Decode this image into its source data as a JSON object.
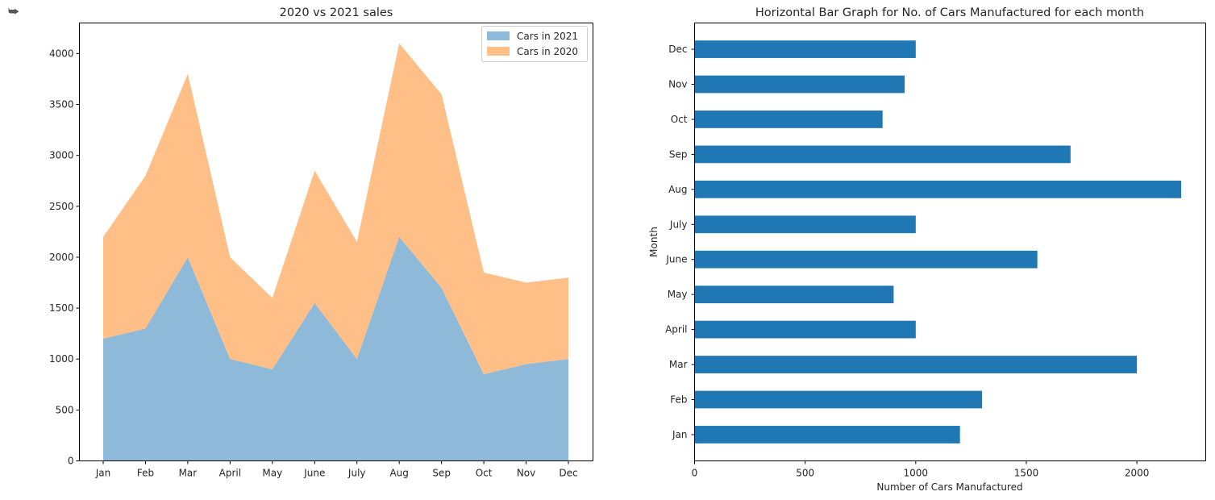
{
  "output_icon": "output-arrow-icon",
  "chart_data": [
    {
      "type": "area",
      "stacked": true,
      "title": "2020 vs 2021 sales",
      "xlabel": "",
      "ylabel": "",
      "categories": [
        "Jan",
        "Feb",
        "Mar",
        "April",
        "May",
        "June",
        "July",
        "Aug",
        "Sep",
        "Oct",
        "Nov",
        "Dec"
      ],
      "series": [
        {
          "name": "Cars in 2021",
          "color": "#8fb9d8",
          "values": [
            1200,
            1300,
            2000,
            1000,
            900,
            1550,
            1000,
            2200,
            1700,
            850,
            950,
            1000
          ]
        },
        {
          "name": "Cars in 2020",
          "color": "#ffbf86",
          "values": [
            1000,
            1500,
            1800,
            1000,
            700,
            1300,
            1150,
            1900,
            1900,
            1000,
            800,
            800
          ]
        }
      ],
      "yticks": [
        0,
        500,
        1000,
        1500,
        2000,
        2500,
        3000,
        3500,
        4000
      ],
      "ylim": [
        0,
        4300
      ],
      "legend": "top-right",
      "grid": false
    },
    {
      "type": "bar",
      "orientation": "horizontal",
      "title": "Horizontal Bar Graph for No. of Cars Manufactured for each month",
      "xlabel": "Number of Cars Manufactured",
      "ylabel": "Month",
      "categories": [
        "Jan",
        "Feb",
        "Mar",
        "April",
        "May",
        "June",
        "July",
        "Aug",
        "Sep",
        "Oct",
        "Nov",
        "Dec"
      ],
      "values": [
        1200,
        1300,
        2000,
        1000,
        900,
        1550,
        1000,
        2200,
        1700,
        850,
        950,
        1000
      ],
      "color": "#1f77b4",
      "xticks": [
        0,
        500,
        1000,
        1500,
        2000
      ],
      "xlim": [
        0,
        2200
      ],
      "grid": false
    }
  ]
}
